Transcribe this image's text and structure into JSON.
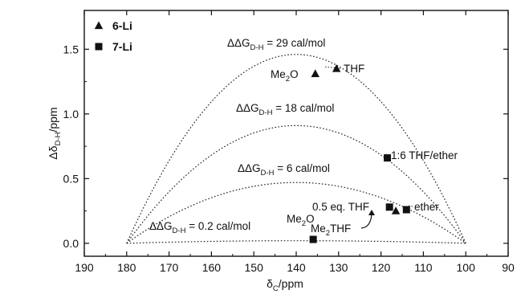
{
  "chart_data": {
    "type": "scatter",
    "title": "",
    "xlabel": {
      "base": "δ",
      "sub": "C",
      "rest": "/ppm"
    },
    "ylabel": {
      "base": "Δδ",
      "sub": "D-H",
      "rest": "/ppm"
    },
    "x_reversed": true,
    "xlim": [
      190,
      90
    ],
    "ylim": [
      -0.1,
      1.8
    ],
    "x_ticks": [
      190,
      180,
      170,
      160,
      150,
      140,
      130,
      120,
      110,
      100,
      90
    ],
    "x_tick_labels": [
      "190",
      "180",
      "170",
      "160",
      "150",
      "140",
      "130",
      "120",
      "110",
      "100",
      "90"
    ],
    "y_ticks": [
      0.0,
      0.5,
      1.0,
      1.5
    ],
    "y_tick_labels": [
      "0.0",
      "0.5",
      "1.0",
      "1.5"
    ],
    "grid": false,
    "legend_position": "top-left",
    "legend": [
      {
        "marker": "triangle",
        "label": "6-Li"
      },
      {
        "marker": "square",
        "label": "7-Li"
      }
    ],
    "series": [
      {
        "name": "6-Li",
        "marker": "triangle",
        "points": [
          {
            "x": 135.5,
            "y": 1.31
          },
          {
            "x": 130.5,
            "y": 1.35
          },
          {
            "x": 116.5,
            "y": 0.25
          }
        ]
      },
      {
        "name": "7-Li",
        "marker": "square",
        "points": [
          {
            "x": 118.5,
            "y": 0.66
          },
          {
            "x": 118.0,
            "y": 0.28
          },
          {
            "x": 114.0,
            "y": 0.26
          },
          {
            "x": 136.0,
            "y": 0.03
          }
        ]
      }
    ],
    "curves": [
      {
        "label": {
          "base": "ΔΔG",
          "sub": "D-H",
          "rest": " = 29 cal/mol"
        },
        "x_start": 180,
        "x_end": 100,
        "y_end": 0.0,
        "peak_x": 140,
        "peak_y": 1.46
      },
      {
        "label": {
          "base": "ΔΔG",
          "sub": "D-H",
          "rest": " = 18 cal/mol"
        },
        "x_start": 180,
        "x_end": 100,
        "y_end": 0.0,
        "peak_x": 140,
        "peak_y": 0.91
      },
      {
        "label": {
          "base": "ΔΔG",
          "sub": "D-H",
          "rest": " = 6 cal/mol"
        },
        "x_start": 180,
        "x_end": 100,
        "y_end": 0.0,
        "peak_x": 140,
        "peak_y": 0.47
      },
      {
        "label": {
          "base": "ΔΔG",
          "sub": "D-H",
          "rest": " = 0.2 cal/mol"
        },
        "x_start": 180,
        "x_end": 100,
        "y_end": 0.0,
        "peak_x": 140,
        "peak_y": 0.02
      }
    ],
    "annotations": [
      {
        "base": "Me",
        "sub": "2",
        "rest": "O"
      },
      {
        "base": "THF",
        "sub": "",
        "rest": ""
      },
      {
        "base": "1:6 THF/ether",
        "sub": "",
        "rest": ""
      },
      {
        "base": "0.5 eq. THF",
        "sub": "",
        "rest": ""
      },
      {
        "base": "ether",
        "sub": "",
        "rest": ""
      },
      {
        "base": "Me",
        "sub": "2",
        "rest": "THF"
      },
      {
        "base": "Me",
        "sub": "2",
        "rest": "O"
      }
    ]
  }
}
